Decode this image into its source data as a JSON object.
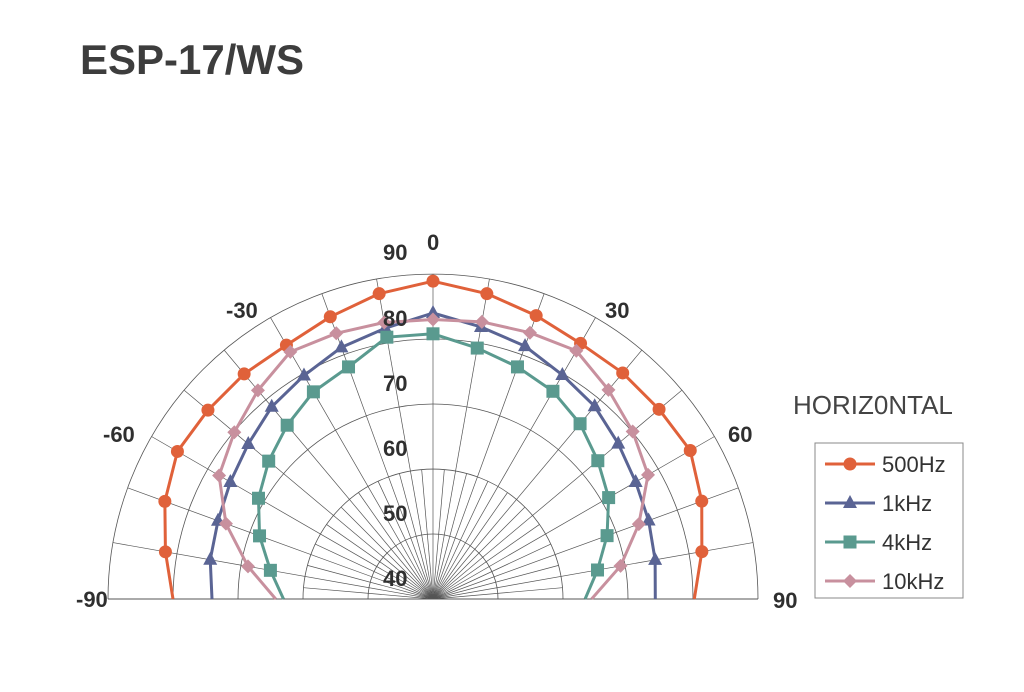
{
  "chart_data": {
    "type": "polar-line",
    "title": "ESP-17/WS",
    "subtitle": "HORIZ0NTAL",
    "angle_range": [
      -90,
      90
    ],
    "angle_tick_labels": [
      "-90",
      "-60",
      "-30",
      "0",
      "30",
      "60",
      "90"
    ],
    "radial_range": [
      40,
      90
    ],
    "radial_tick_labels": [
      "40",
      "50",
      "60",
      "70",
      "80",
      "90"
    ],
    "grid": true,
    "legend_position": "right",
    "angles": [
      -90,
      -80,
      -70,
      -60,
      -50,
      -40,
      -30,
      -20,
      -10,
      0,
      10,
      20,
      30,
      40,
      50,
      60,
      70,
      80,
      90
    ],
    "series": [
      {
        "name": "500Hz",
        "color": "#e0613a",
        "marker": "circle",
        "values": [
          80,
          81.8,
          83.9,
          85.4,
          85.2,
          85.2,
          85.1,
          86.2,
          87.7,
          88.9,
          87.7,
          86.4,
          85.4,
          85.4,
          85.4,
          85.7,
          84,
          82,
          80.2
        ]
      },
      {
        "name": "1kHz",
        "color": "#5a6494",
        "marker": "triangle",
        "values": [
          74,
          74.8,
          75.2,
          76,
          77.1,
          78.6,
          79.7,
          81.2,
          82.3,
          84,
          82.5,
          81.4,
          79.8,
          78.7,
          77.2,
          76,
          75.3,
          74.7,
          74.2
        ]
      },
      {
        "name": "4kHz",
        "color": "#5a9a8f",
        "marker": "square",
        "values": [
          63,
          65.4,
          68.4,
          71,
          73,
          74.9,
          76.8,
          78,
          80.9,
          80.8,
          79.2,
          78,
          76.9,
          75.2,
          73.1,
          71.2,
          68.5,
          65.7,
          63.4
        ]
      },
      {
        "name": "10kHz",
        "color": "#c8909e",
        "marker": "diamond",
        "values": [
          64.2,
          68.9,
          73.9,
          78,
          79.9,
          81.9,
          83.9,
          83.5,
          83.2,
          83,
          83.3,
          83.6,
          84.1,
          82,
          80.1,
          78.2,
          73.7,
          69.3,
          64.4
        ]
      }
    ]
  }
}
